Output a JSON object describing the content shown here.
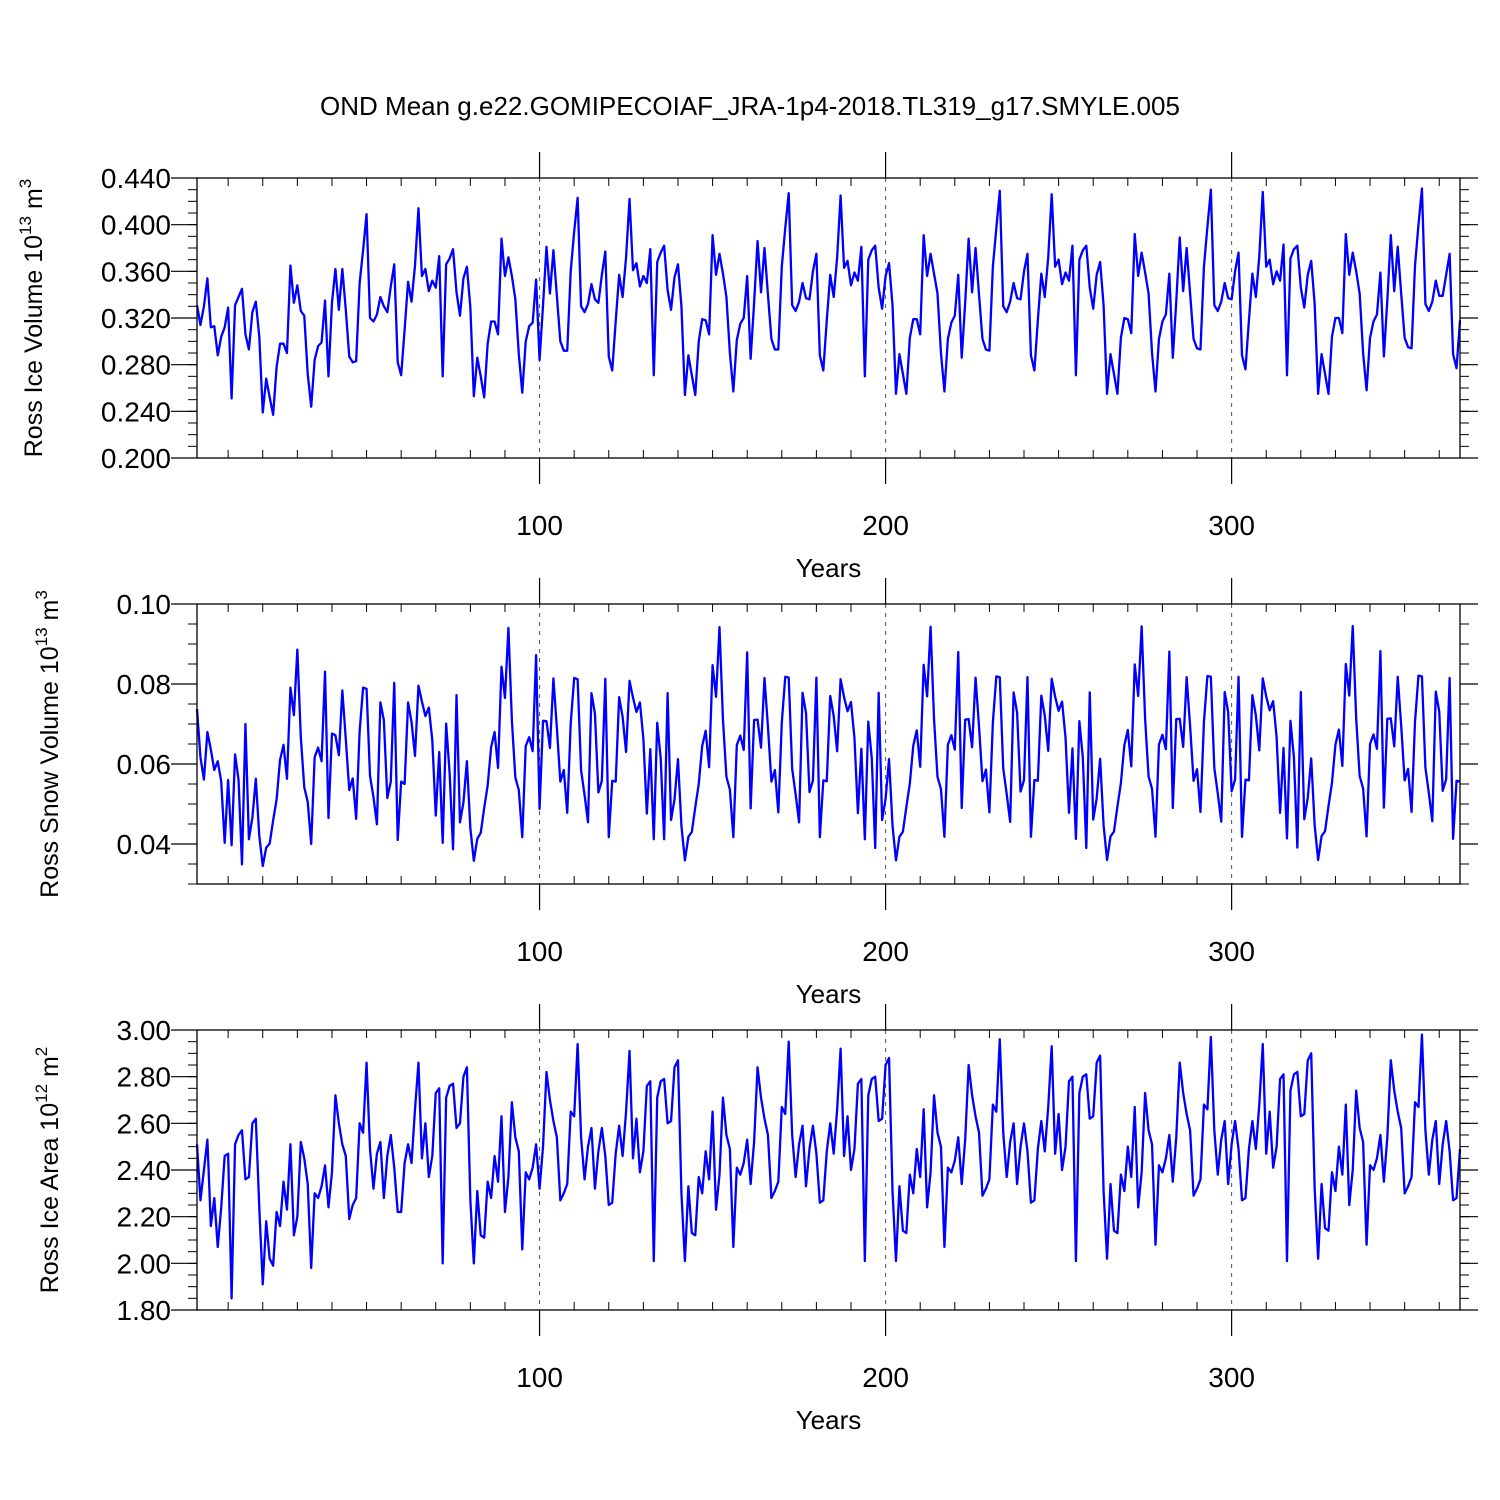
{
  "title": "OND Mean g.e22.GOMIPECOIAF_JRA-1p4-2018.TL319_g17.SMYLE.005",
  "series_color": "#0000ff",
  "chart_data": [
    {
      "type": "line",
      "name": "ice_volume",
      "ylabel": {
        "main": "Ross Ice Volume 10",
        "exp": "13",
        "unit": " m",
        "unit_exp": "3"
      },
      "xlabel": "Years",
      "xlim": [
        1,
        366
      ],
      "ylim": [
        0.2,
        0.44
      ],
      "yticks": [
        0.2,
        0.24,
        0.28,
        0.32,
        0.36,
        0.4,
        0.44
      ],
      "ytick_labels": [
        "0.200",
        "0.240",
        "0.280",
        "0.320",
        "0.360",
        "0.400",
        "0.440"
      ],
      "xticks": [
        100,
        200,
        300
      ],
      "xtick_labels": [
        "100",
        "200",
        "300"
      ],
      "values": [
        0.331,
        0.314,
        0.33,
        0.354,
        0.312,
        0.313,
        0.288,
        0.304,
        0.312,
        0.329,
        0.251,
        0.331,
        0.338,
        0.345,
        0.306,
        0.293,
        0.325,
        0.334,
        0.304,
        0.239,
        0.268,
        0.252,
        0.237,
        0.278,
        0.298,
        0.298,
        0.29,
        0.365,
        0.333,
        0.348,
        0.326,
        0.322,
        0.272,
        0.244,
        0.284,
        0.296,
        0.299,
        0.335,
        0.27,
        0.333,
        0.362,
        0.327,
        0.362,
        0.327,
        0.287,
        0.282,
        0.283,
        0.35,
        0.378,
        0.409,
        0.32,
        0.317,
        0.323,
        0.338,
        0.33,
        0.325,
        0.347,
        0.366,
        0.282,
        0.271,
        0.31,
        0.351,
        0.334,
        0.365,
        0.414,
        0.356,
        0.362,
        0.343,
        0.352,
        0.346,
        0.373,
        0.27,
        0.366,
        0.371,
        0.379,
        0.342,
        0.322,
        0.354,
        0.364,
        0.329,
        0.253,
        0.286,
        0.27,
        0.252,
        0.298,
        0.317,
        0.317,
        0.306,
        0.388,
        0.356,
        0.372,
        0.356,
        0.336,
        0.289,
        0.256,
        0.3,
        0.313,
        0.316,
        0.353,
        0.284,
        0.331,
        0.381,
        0.341,
        0.378,
        0.339,
        0.3,
        0.292,
        0.292,
        0.36,
        0.394,
        0.423,
        0.33,
        0.325,
        0.332,
        0.349,
        0.336,
        0.333,
        0.357,
        0.377,
        0.287,
        0.275,
        0.317,
        0.357,
        0.338,
        0.372,
        0.422,
        0.361,
        0.367,
        0.347,
        0.356,
        0.35,
        0.379,
        0.271,
        0.368,
        0.376,
        0.382,
        0.344,
        0.327,
        0.355,
        0.366,
        0.33,
        0.254,
        0.288,
        0.271,
        0.254,
        0.3,
        0.319,
        0.318,
        0.306,
        0.391,
        0.357,
        0.375,
        0.358,
        0.338,
        0.29,
        0.257,
        0.301,
        0.315,
        0.32,
        0.356,
        0.285,
        0.333,
        0.386,
        0.342,
        0.38,
        0.34,
        0.302,
        0.293,
        0.293,
        0.364,
        0.397,
        0.427,
        0.331,
        0.326,
        0.334,
        0.35,
        0.337,
        0.336,
        0.36,
        0.375,
        0.288,
        0.275,
        0.318,
        0.357,
        0.338,
        0.372,
        0.425,
        0.363,
        0.369,
        0.348,
        0.359,
        0.352,
        0.381,
        0.27,
        0.37,
        0.378,
        0.382,
        0.346,
        0.328,
        0.356,
        0.367,
        0.331,
        0.255,
        0.289,
        0.272,
        0.255,
        0.303,
        0.319,
        0.319,
        0.306,
        0.391,
        0.356,
        0.375,
        0.358,
        0.341,
        0.29,
        0.257,
        0.302,
        0.316,
        0.322,
        0.357,
        0.286,
        0.333,
        0.388,
        0.342,
        0.38,
        0.34,
        0.302,
        0.293,
        0.292,
        0.364,
        0.397,
        0.429,
        0.33,
        0.325,
        0.334,
        0.35,
        0.337,
        0.336,
        0.36,
        0.375,
        0.288,
        0.275,
        0.318,
        0.358,
        0.338,
        0.372,
        0.426,
        0.364,
        0.37,
        0.349,
        0.359,
        0.352,
        0.382,
        0.271,
        0.37,
        0.378,
        0.382,
        0.346,
        0.328,
        0.357,
        0.368,
        0.331,
        0.255,
        0.289,
        0.272,
        0.255,
        0.303,
        0.32,
        0.319,
        0.307,
        0.392,
        0.356,
        0.376,
        0.359,
        0.341,
        0.29,
        0.257,
        0.302,
        0.317,
        0.323,
        0.358,
        0.286,
        0.334,
        0.389,
        0.343,
        0.38,
        0.341,
        0.302,
        0.294,
        0.293,
        0.364,
        0.398,
        0.43,
        0.331,
        0.326,
        0.334,
        0.35,
        0.337,
        0.336,
        0.36,
        0.376,
        0.288,
        0.276,
        0.318,
        0.358,
        0.338,
        0.373,
        0.428,
        0.364,
        0.37,
        0.349,
        0.36,
        0.352,
        0.383,
        0.271,
        0.371,
        0.379,
        0.382,
        0.346,
        0.329,
        0.357,
        0.369,
        0.332,
        0.255,
        0.289,
        0.272,
        0.255,
        0.304,
        0.32,
        0.32,
        0.307,
        0.392,
        0.357,
        0.376,
        0.36,
        0.341,
        0.29,
        0.258,
        0.303,
        0.317,
        0.323,
        0.359,
        0.287,
        0.335,
        0.391,
        0.343,
        0.381,
        0.341,
        0.303,
        0.295,
        0.294,
        0.365,
        0.4,
        0.431,
        0.332,
        0.326,
        0.334,
        0.352,
        0.339,
        0.339,
        0.357,
        0.375,
        0.289,
        0.277,
        0.318
      ]
    },
    {
      "type": "line",
      "name": "snow_volume",
      "ylabel": {
        "main": "Ross Snow Volume 10",
        "exp": "13",
        "unit": " m",
        "unit_exp": "3"
      },
      "xlabel": "Years",
      "xlim": [
        1,
        366
      ],
      "ylim": [
        0.03,
        0.1
      ],
      "yticks": [
        0.04,
        0.06,
        0.08,
        0.1
      ],
      "ytick_labels": [
        "0.04",
        "0.06",
        "0.08",
        "0.10"
      ],
      "xticks": [
        100,
        200,
        300
      ],
      "xtick_labels": [
        "100",
        "200",
        "300"
      ],
      "values": [
        0.0737,
        0.0617,
        0.0561,
        0.068,
        0.0636,
        0.0585,
        0.0607,
        0.0556,
        0.0403,
        0.056,
        0.0397,
        0.0624,
        0.0561,
        0.0349,
        0.07,
        0.0412,
        0.0465,
        0.0563,
        0.0421,
        0.0345,
        0.0391,
        0.0401,
        0.0459,
        0.0511,
        0.061,
        0.0648,
        0.0563,
        0.0791,
        0.0722,
        0.0886,
        0.0667,
        0.0542,
        0.0505,
        0.04,
        0.0617,
        0.0641,
        0.0607,
        0.0831,
        0.0465,
        0.0676,
        0.0672,
        0.0622,
        0.0784,
        0.0662,
        0.0535,
        0.0564,
        0.0463,
        0.0682,
        0.0791,
        0.0788,
        0.057,
        0.0517,
        0.0449,
        0.0754,
        0.071,
        0.0515,
        0.0556,
        0.0803,
        0.041,
        0.0556,
        0.055,
        0.0754,
        0.0705,
        0.062,
        0.0796,
        0.0756,
        0.072,
        0.0741,
        0.066,
        0.0471,
        0.063,
        0.0403,
        0.0701,
        0.0578,
        0.0387,
        0.0772,
        0.0454,
        0.0504,
        0.0607,
        0.0439,
        0.0358,
        0.0413,
        0.0428,
        0.049,
        0.0546,
        0.0642,
        0.068,
        0.059,
        0.0843,
        0.0765,
        0.094,
        0.0709,
        0.0566,
        0.0535,
        0.0417,
        0.0645,
        0.0667,
        0.0632,
        0.0872,
        0.0488,
        0.0708,
        0.0707,
        0.064,
        0.0814,
        0.069,
        0.0556,
        0.0585,
        0.0478,
        0.0701,
        0.0815,
        0.0812,
        0.0584,
        0.0523,
        0.0454,
        0.0777,
        0.0726,
        0.0529,
        0.0558,
        0.0813,
        0.0417,
        0.0558,
        0.0556,
        0.0767,
        0.0718,
        0.063,
        0.0808,
        0.0766,
        0.073,
        0.0754,
        0.0663,
        0.0476,
        0.0637,
        0.0412,
        0.0703,
        0.0615,
        0.0412,
        0.0777,
        0.046,
        0.0512,
        0.0612,
        0.0445,
        0.0359,
        0.0418,
        0.043,
        0.0492,
        0.055,
        0.0645,
        0.0683,
        0.0592,
        0.0847,
        0.0768,
        0.0942,
        0.0711,
        0.0568,
        0.0536,
        0.0417,
        0.0647,
        0.0671,
        0.0635,
        0.0879,
        0.0489,
        0.071,
        0.0711,
        0.0641,
        0.0815,
        0.0693,
        0.0556,
        0.0585,
        0.0479,
        0.0703,
        0.0818,
        0.0816,
        0.0588,
        0.0524,
        0.0454,
        0.0778,
        0.0728,
        0.053,
        0.0559,
        0.0816,
        0.0417,
        0.0559,
        0.0557,
        0.077,
        0.072,
        0.0632,
        0.0812,
        0.0767,
        0.0732,
        0.0755,
        0.0665,
        0.0477,
        0.0638,
        0.0412,
        0.0706,
        0.0615,
        0.039,
        0.0778,
        0.046,
        0.0513,
        0.0612,
        0.0446,
        0.0359,
        0.0418,
        0.0431,
        0.0493,
        0.0551,
        0.0646,
        0.0684,
        0.0593,
        0.0848,
        0.0769,
        0.0943,
        0.0712,
        0.0568,
        0.0537,
        0.0418,
        0.0648,
        0.0672,
        0.0636,
        0.088,
        0.049,
        0.0711,
        0.0712,
        0.0642,
        0.0816,
        0.0694,
        0.0557,
        0.0586,
        0.0479,
        0.0704,
        0.0819,
        0.0817,
        0.0589,
        0.0525,
        0.0455,
        0.0779,
        0.0729,
        0.0531,
        0.056,
        0.0817,
        0.0418,
        0.056,
        0.0558,
        0.0771,
        0.0721,
        0.0633,
        0.0813,
        0.0768,
        0.0733,
        0.0756,
        0.0666,
        0.0478,
        0.0639,
        0.0413,
        0.0707,
        0.0616,
        0.039,
        0.0779,
        0.0461,
        0.0514,
        0.0613,
        0.0447,
        0.036,
        0.0419,
        0.0431,
        0.0494,
        0.0552,
        0.0647,
        0.0685,
        0.0594,
        0.0849,
        0.077,
        0.0944,
        0.0713,
        0.0569,
        0.0538,
        0.0418,
        0.0649,
        0.0673,
        0.0637,
        0.0881,
        0.049,
        0.0712,
        0.0713,
        0.0643,
        0.0817,
        0.0695,
        0.0558,
        0.0587,
        0.048,
        0.0705,
        0.082,
        0.0818,
        0.059,
        0.0526,
        0.0456,
        0.078,
        0.073,
        0.0532,
        0.0561,
        0.0818,
        0.0418,
        0.0561,
        0.0559,
        0.0772,
        0.0722,
        0.0634,
        0.0814,
        0.0769,
        0.0734,
        0.0757,
        0.0667,
        0.0478,
        0.064,
        0.0414,
        0.0708,
        0.0617,
        0.0391,
        0.078,
        0.0462,
        0.0515,
        0.0614,
        0.0447,
        0.036,
        0.042,
        0.0432,
        0.0495,
        0.0553,
        0.0648,
        0.0686,
        0.0595,
        0.085,
        0.0771,
        0.0945,
        0.0714,
        0.057,
        0.0539,
        0.0419,
        0.065,
        0.0674,
        0.0638,
        0.0882,
        0.0491,
        0.0713,
        0.0714,
        0.0644,
        0.0818,
        0.0696,
        0.0559,
        0.0588,
        0.048,
        0.0706,
        0.0821,
        0.0819,
        0.0591,
        0.0527,
        0.0457,
        0.0781,
        0.0731,
        0.0533,
        0.0562,
        0.0815,
        0.0413,
        0.0558,
        0.0556
      ]
    },
    {
      "type": "line",
      "name": "ice_area",
      "ylabel": {
        "main": "Ross Ice Area 10",
        "exp": "12",
        "unit": " m",
        "unit_exp": "2"
      },
      "xlabel": "Years",
      "xlim": [
        1,
        366
      ],
      "ylim": [
        1.8,
        3.0
      ],
      "yticks": [
        1.8,
        2.0,
        2.2,
        2.4,
        2.6,
        2.8,
        3.0
      ],
      "ytick_labels": [
        "1.80",
        "2.00",
        "2.20",
        "2.40",
        "2.60",
        "2.80",
        "3.00"
      ],
      "xticks": [
        100,
        200,
        300
      ],
      "xtick_labels": [
        "100",
        "200",
        "300"
      ],
      "values": [
        2.51,
        2.27,
        2.4,
        2.53,
        2.16,
        2.28,
        2.07,
        2.24,
        2.46,
        2.47,
        1.85,
        2.51,
        2.55,
        2.57,
        2.36,
        2.37,
        2.6,
        2.62,
        2.24,
        1.91,
        2.18,
        2.02,
        1.99,
        2.22,
        2.16,
        2.35,
        2.23,
        2.51,
        2.12,
        2.2,
        2.52,
        2.45,
        2.34,
        1.98,
        2.3,
        2.28,
        2.33,
        2.42,
        2.24,
        2.39,
        2.72,
        2.6,
        2.51,
        2.46,
        2.19,
        2.25,
        2.28,
        2.6,
        2.56,
        2.86,
        2.49,
        2.32,
        2.47,
        2.52,
        2.28,
        2.46,
        2.55,
        2.41,
        2.22,
        2.22,
        2.43,
        2.51,
        2.43,
        2.66,
        2.86,
        2.45,
        2.6,
        2.37,
        2.46,
        2.73,
        2.75,
        2.0,
        2.71,
        2.76,
        2.77,
        2.58,
        2.6,
        2.8,
        2.84,
        2.27,
        2.0,
        2.31,
        2.12,
        2.11,
        2.35,
        2.28,
        2.46,
        2.35,
        2.63,
        2.22,
        2.37,
        2.69,
        2.54,
        2.48,
        2.06,
        2.39,
        2.36,
        2.41,
        2.51,
        2.32,
        2.5,
        2.82,
        2.7,
        2.61,
        2.54,
        2.27,
        2.3,
        2.34,
        2.65,
        2.63,
        2.94,
        2.54,
        2.36,
        2.5,
        2.58,
        2.32,
        2.48,
        2.58,
        2.46,
        2.25,
        2.26,
        2.47,
        2.59,
        2.46,
        2.65,
        2.91,
        2.45,
        2.62,
        2.39,
        2.48,
        2.76,
        2.78,
        2.01,
        2.71,
        2.78,
        2.79,
        2.6,
        2.61,
        2.84,
        2.87,
        2.3,
        2.01,
        2.33,
        2.13,
        2.12,
        2.37,
        2.3,
        2.48,
        2.36,
        2.65,
        2.23,
        2.38,
        2.71,
        2.55,
        2.49,
        2.07,
        2.41,
        2.38,
        2.43,
        2.53,
        2.34,
        2.52,
        2.84,
        2.71,
        2.62,
        2.55,
        2.28,
        2.31,
        2.35,
        2.67,
        2.64,
        2.95,
        2.55,
        2.37,
        2.51,
        2.59,
        2.33,
        2.49,
        2.59,
        2.47,
        2.26,
        2.27,
        2.48,
        2.6,
        2.47,
        2.66,
        2.92,
        2.46,
        2.63,
        2.4,
        2.49,
        2.77,
        2.79,
        2.01,
        2.72,
        2.79,
        2.8,
        2.61,
        2.62,
        2.85,
        2.88,
        2.31,
        2.01,
        2.33,
        2.14,
        2.13,
        2.38,
        2.3,
        2.49,
        2.37,
        2.66,
        2.24,
        2.39,
        2.72,
        2.56,
        2.5,
        2.07,
        2.41,
        2.39,
        2.44,
        2.54,
        2.34,
        2.53,
        2.85,
        2.72,
        2.63,
        2.56,
        2.29,
        2.32,
        2.36,
        2.68,
        2.65,
        2.96,
        2.56,
        2.37,
        2.52,
        2.6,
        2.34,
        2.5,
        2.6,
        2.48,
        2.26,
        2.27,
        2.49,
        2.61,
        2.48,
        2.67,
        2.93,
        2.47,
        2.64,
        2.4,
        2.5,
        2.78,
        2.8,
        2.01,
        2.73,
        2.8,
        2.81,
        2.62,
        2.63,
        2.86,
        2.89,
        2.31,
        2.02,
        2.34,
        2.14,
        2.13,
        2.38,
        2.31,
        2.5,
        2.37,
        2.67,
        2.24,
        2.39,
        2.73,
        2.57,
        2.51,
        2.08,
        2.42,
        2.39,
        2.45,
        2.55,
        2.35,
        2.54,
        2.86,
        2.73,
        2.64,
        2.57,
        2.29,
        2.32,
        2.36,
        2.68,
        2.66,
        2.97,
        2.57,
        2.38,
        2.53,
        2.61,
        2.34,
        2.51,
        2.61,
        2.49,
        2.27,
        2.28,
        2.49,
        2.61,
        2.49,
        2.68,
        2.94,
        2.47,
        2.65,
        2.41,
        2.5,
        2.79,
        2.81,
        2.01,
        2.74,
        2.81,
        2.82,
        2.63,
        2.64,
        2.87,
        2.9,
        2.32,
        2.02,
        2.34,
        2.15,
        2.14,
        2.39,
        2.31,
        2.5,
        2.38,
        2.68,
        2.25,
        2.4,
        2.74,
        2.58,
        2.52,
        2.08,
        2.42,
        2.4,
        2.45,
        2.55,
        2.35,
        2.54,
        2.87,
        2.74,
        2.65,
        2.58,
        2.3,
        2.33,
        2.37,
        2.69,
        2.67,
        2.98,
        2.57,
        2.38,
        2.53,
        2.61,
        2.34,
        2.51,
        2.61,
        2.48,
        2.27,
        2.28,
        2.49
      ]
    }
  ]
}
